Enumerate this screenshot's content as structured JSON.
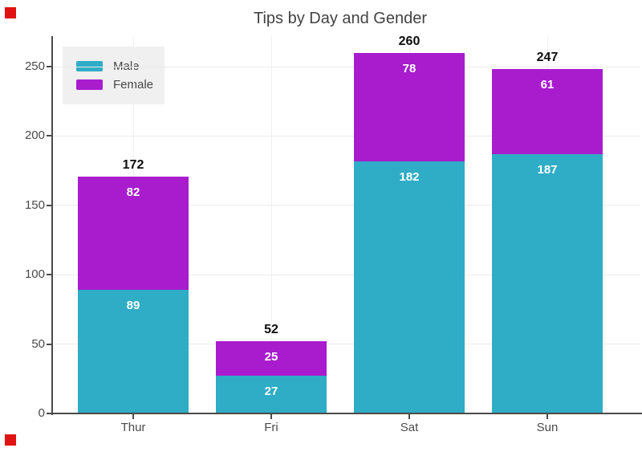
{
  "title": "Tips by Day and Gender",
  "markers": {
    "color": "#e11212",
    "top_left": "red-square",
    "bottom_left": "red-square"
  },
  "chart_data": {
    "type": "bar",
    "stacked": true,
    "title": "Tips by Day and Gender",
    "categories": [
      "Thur",
      "Fri",
      "Sat",
      "Sun"
    ],
    "series": [
      {
        "name": "Male",
        "color": "#2facc6",
        "values": [
          89,
          27,
          182,
          187
        ]
      },
      {
        "name": "Female",
        "color": "#a81cce",
        "values": [
          82,
          25,
          78,
          61
        ]
      }
    ],
    "totals": [
      172,
      52,
      260,
      247
    ],
    "xlabel": "",
    "ylabel": "",
    "yticks": [
      0,
      50,
      100,
      150,
      200,
      250
    ],
    "ylim": [
      0,
      272
    ],
    "grid": true,
    "legend_position": "inside-top-left",
    "label_text_color_inside": "#ffffff",
    "label_text_color_total": "#0d0d0d",
    "axis_color": "#4a4a4a",
    "grid_color": "#ebebeb",
    "legend_bg": "#f0f0f0"
  }
}
